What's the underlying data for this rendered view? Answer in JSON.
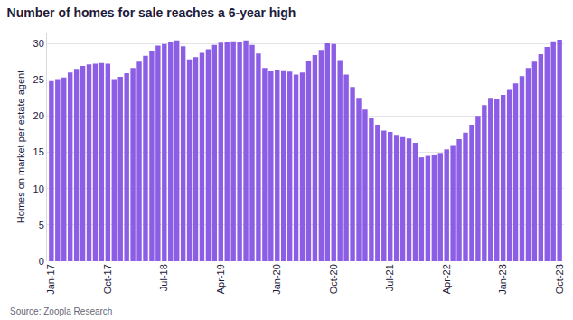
{
  "chart_data": {
    "type": "bar",
    "title": "Number of homes for sale reaches a 6-year high",
    "y_label": "Homes on market per estate agent",
    "annotations": [
      "Source: Zoopla Research"
    ],
    "categories": [
      "Jan-17",
      null,
      null,
      null,
      null,
      null,
      null,
      null,
      null,
      "Oct-17",
      null,
      null,
      null,
      null,
      null,
      null,
      null,
      null,
      "Jul-18",
      null,
      null,
      null,
      null,
      null,
      null,
      null,
      null,
      "Apr-19",
      null,
      null,
      null,
      null,
      null,
      null,
      null,
      null,
      "Jan-20",
      null,
      null,
      null,
      null,
      null,
      null,
      null,
      null,
      "Oct-20",
      null,
      null,
      null,
      null,
      null,
      null,
      null,
      null,
      "Jul-21",
      null,
      null,
      null,
      null,
      null,
      null,
      null,
      null,
      "Apr-22",
      null,
      null,
      null,
      null,
      null,
      null,
      null,
      null,
      "Jan-23",
      null,
      null,
      null,
      null,
      null,
      null,
      null,
      null,
      "Oct-23"
    ],
    "values": [
      24.8,
      25.1,
      25.3,
      26.0,
      26.5,
      26.9,
      27.1,
      27.2,
      27.3,
      27.2,
      25.1,
      25.4,
      25.9,
      26.6,
      27.5,
      28.3,
      29.0,
      29.7,
      29.9,
      30.2,
      30.4,
      29.6,
      27.8,
      28.1,
      28.7,
      29.2,
      29.8,
      30.1,
      30.2,
      30.3,
      30.2,
      30.4,
      29.8,
      28.6,
      26.6,
      26.2,
      26.4,
      26.3,
      26.1,
      25.7,
      26.0,
      27.6,
      28.4,
      29.1,
      30.0,
      29.9,
      27.7,
      25.7,
      24.0,
      22.5,
      20.9,
      19.8,
      18.8,
      18.0,
      17.8,
      17.4,
      17.1,
      16.9,
      16.3,
      14.3,
      14.5,
      14.7,
      14.9,
      15.4,
      16.0,
      16.8,
      17.7,
      18.8,
      20.0,
      21.5,
      22.5,
      22.4,
      22.9,
      23.6,
      24.5,
      25.5,
      26.6,
      27.5,
      28.5,
      29.5,
      30.3,
      30.5
    ],
    "color": "#8c5ee6",
    "ylim": [
      0,
      31.5
    ],
    "yticks": [
      0,
      5,
      10,
      15,
      20,
      25,
      30
    ],
    "grid": true
  }
}
